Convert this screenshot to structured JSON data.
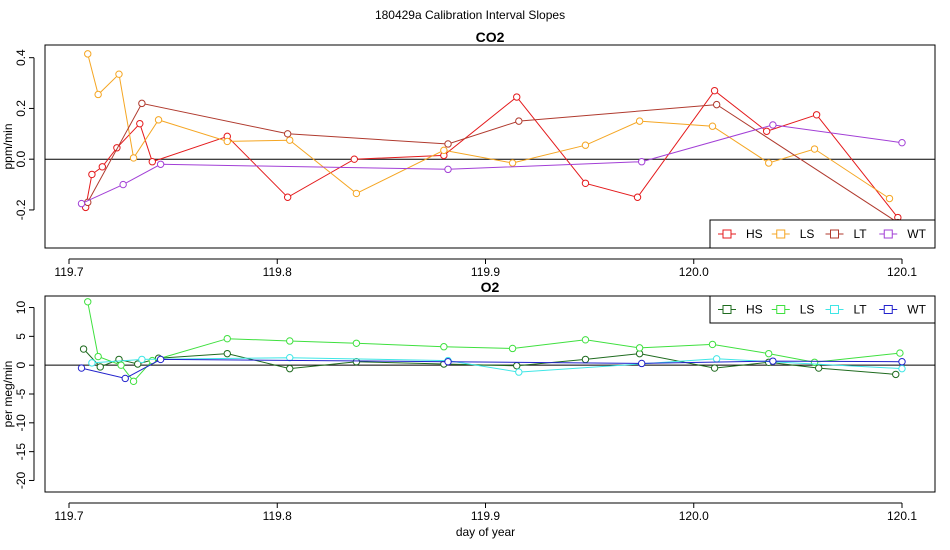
{
  "figure_title": "180429a   Calibration Interval Slopes",
  "chart_data": [
    {
      "type": "line",
      "title": "CO2",
      "xlabel": "",
      "ylabel": "ppm/min",
      "xlim": [
        119.7,
        120.1
      ],
      "ylim": [
        -0.35,
        0.45
      ],
      "x_ticks": [
        119.7,
        119.8,
        119.9,
        120.0,
        120.1
      ],
      "x_tick_labels": [
        "119.7",
        "119.8",
        "119.9",
        "120.0",
        "120.1"
      ],
      "y_ticks": [
        -0.2,
        0.0,
        0.2,
        0.4
      ],
      "y_tick_labels": [
        "-0.2",
        "0.0",
        "0.2",
        "0.4"
      ],
      "hline": 0,
      "legend_position": "bottom-right",
      "series": [
        {
          "name": "HS",
          "color": "#e41a1c",
          "x": [
            119.708,
            119.711,
            119.716,
            119.723,
            119.734,
            119.74,
            119.776,
            119.805,
            119.837,
            119.88,
            119.915,
            119.948,
            119.973,
            120.01,
            120.035,
            120.059,
            120.098
          ],
          "y": [
            -0.19,
            -0.06,
            -0.03,
            0.045,
            0.14,
            -0.01,
            0.09,
            -0.15,
            0.0,
            0.015,
            0.245,
            -0.095,
            -0.15,
            0.27,
            0.11,
            0.175,
            -0.23
          ]
        },
        {
          "name": "LS",
          "color": "#f5a623",
          "x": [
            119.709,
            119.714,
            119.724,
            119.731,
            119.743,
            119.776,
            119.806,
            119.838,
            119.88,
            119.913,
            119.948,
            119.974,
            120.009,
            120.036,
            120.058,
            120.094
          ],
          "y": [
            0.415,
            0.255,
            0.335,
            0.005,
            0.155,
            0.07,
            0.075,
            -0.135,
            0.035,
            -0.015,
            0.055,
            0.15,
            0.13,
            -0.015,
            0.04,
            -0.155
          ]
        },
        {
          "name": "LT",
          "color": "#b03a2e",
          "x": [
            119.709,
            119.735,
            119.805,
            119.882,
            119.916,
            120.011,
            120.098
          ],
          "y": [
            -0.17,
            0.22,
            0.1,
            0.06,
            0.15,
            0.215,
            -0.25
          ]
        },
        {
          "name": "WT",
          "color": "#a23fd6",
          "x": [
            119.706,
            119.726,
            119.744,
            119.882,
            119.975,
            120.038,
            120.1
          ],
          "y": [
            -0.175,
            -0.1,
            -0.02,
            -0.04,
            -0.01,
            0.135,
            0.065
          ]
        }
      ]
    },
    {
      "type": "line",
      "title": "O2",
      "xlabel": "day of year",
      "ylabel": "per meg/min",
      "xlim": [
        119.7,
        120.1
      ],
      "ylim": [
        -22,
        12
      ],
      "x_ticks": [
        119.7,
        119.8,
        119.9,
        120.0,
        120.1
      ],
      "x_tick_labels": [
        "119.7",
        "119.8",
        "119.9",
        "120.0",
        "120.1"
      ],
      "y_ticks": [
        -20,
        -15,
        -10,
        -5,
        0,
        5,
        10
      ],
      "y_tick_labels": [
        "-20",
        "-15",
        "-10",
        "-5",
        "0",
        "5",
        "10"
      ],
      "hline": 0,
      "legend_position": "top-right",
      "series": [
        {
          "name": "HS",
          "color": "#1f6b1f",
          "x": [
            119.707,
            119.715,
            119.724,
            119.733,
            119.743,
            119.776,
            119.806,
            119.838,
            119.88,
            119.915,
            119.948,
            119.974,
            120.01,
            120.036,
            120.06,
            120.097
          ],
          "y": [
            2.8,
            -0.3,
            1.0,
            0.2,
            1.2,
            2.0,
            -0.6,
            0.6,
            0.2,
            -0.1,
            1.0,
            2.0,
            -0.5,
            0.5,
            -0.5,
            -1.6
          ]
        },
        {
          "name": "LS",
          "color": "#3fe03f",
          "x": [
            119.709,
            119.714,
            119.725,
            119.731,
            119.74,
            119.776,
            119.806,
            119.838,
            119.88,
            119.913,
            119.948,
            119.974,
            120.009,
            120.036,
            120.058,
            120.099
          ],
          "y": [
            11.0,
            1.5,
            0.0,
            -2.8,
            0.8,
            4.6,
            4.2,
            3.8,
            3.2,
            2.9,
            4.4,
            3.0,
            3.6,
            2.0,
            0.5,
            2.1
          ]
        },
        {
          "name": "LT",
          "color": "#3fe6e6",
          "x": [
            119.711,
            119.735,
            119.806,
            119.882,
            119.916,
            120.011,
            120.1
          ],
          "y": [
            0.4,
            1.0,
            1.3,
            0.8,
            -1.2,
            1.1,
            -0.6
          ]
        },
        {
          "name": "WT",
          "color": "#2222cc",
          "x": [
            119.706,
            119.727,
            119.744,
            119.882,
            119.975,
            120.038,
            120.1
          ],
          "y": [
            -0.5,
            -2.3,
            1.0,
            0.6,
            0.3,
            0.7,
            0.6
          ]
        }
      ]
    }
  ]
}
